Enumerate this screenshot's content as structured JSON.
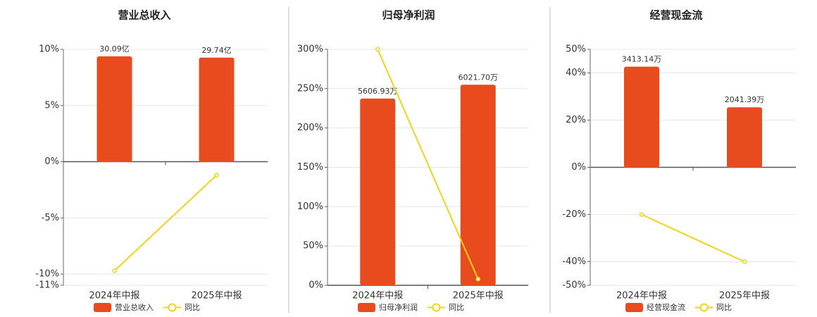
{
  "chart_data": [
    {
      "type": "bar",
      "title": "营业总收入",
      "categories": [
        "2024年中报",
        "2025年中报"
      ],
      "series": [
        {
          "name": "营业总收入",
          "type": "bar",
          "axis": "y2",
          "color": "#e84c1e",
          "values": [
            30.09,
            29.74
          ],
          "value_labels": [
            "30.09亿",
            "29.74亿"
          ]
        },
        {
          "name": "同比",
          "type": "line",
          "color": "#f2d31b",
          "values": [
            -9.7,
            -1.2
          ]
        }
      ],
      "ylim": [
        -11,
        10
      ],
      "yticks": [
        {
          "value": 10,
          "label": "10%"
        },
        {
          "value": 5,
          "label": "5%"
        },
        {
          "value": 0,
          "label": "0%"
        },
        {
          "value": -5,
          "label": "-5%"
        },
        {
          "value": -10,
          "label": "-10%"
        },
        {
          "value": -11,
          "label": "-11%"
        }
      ],
      "y2lim": [
        -35.1,
        32.1
      ],
      "grid": true
    },
    {
      "type": "bar",
      "title": "归母净利润",
      "categories": [
        "2024年中报",
        "2025年中报"
      ],
      "series": [
        {
          "name": "归母净利润",
          "type": "bar",
          "axis": "y2",
          "color": "#e84c1e",
          "values": [
            5606.93,
            6021.7
          ],
          "value_labels": [
            "5606.93万",
            "6021.70万"
          ]
        },
        {
          "name": "同比",
          "type": "line",
          "color": "#f2d31b",
          "values": [
            300,
            8
          ]
        }
      ],
      "ylim": [
        0,
        300
      ],
      "yticks": [
        {
          "value": 300,
          "label": "300%"
        },
        {
          "value": 250,
          "label": "250%"
        },
        {
          "value": 200,
          "label": "200%"
        },
        {
          "value": 150,
          "label": "150%"
        },
        {
          "value": 100,
          "label": "100%"
        },
        {
          "value": 50,
          "label": "50%"
        },
        {
          "value": 0,
          "label": "0%"
        }
      ],
      "y2lim": [
        0,
        7085
      ],
      "grid": true
    },
    {
      "type": "bar",
      "title": "经营现金流",
      "categories": [
        "2024年中报",
        "2025年中报"
      ],
      "series": [
        {
          "name": "经营现金流",
          "type": "bar",
          "axis": "y2",
          "color": "#e84c1e",
          "values": [
            3413.14,
            2041.39
          ],
          "value_labels": [
            "3413.14万",
            "2041.39万"
          ]
        },
        {
          "name": "同比",
          "type": "line",
          "color": "#f2d31b",
          "values": [
            -20,
            -40
          ]
        }
      ],
      "ylim": [
        -50,
        50
      ],
      "yticks": [
        {
          "value": 50,
          "label": "50%"
        },
        {
          "value": 40,
          "label": "40%"
        },
        {
          "value": 20,
          "label": "20%"
        },
        {
          "value": 0,
          "label": "0%"
        },
        {
          "value": -20,
          "label": "-20%"
        },
        {
          "value": -40,
          "label": "-40%"
        },
        {
          "value": -50,
          "label": "-50%"
        }
      ],
      "y2lim": [
        -3980,
        4000
      ],
      "grid": true
    }
  ]
}
